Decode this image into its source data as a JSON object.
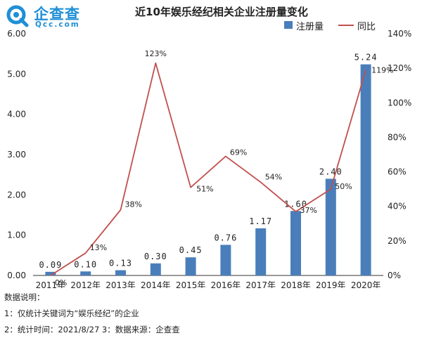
{
  "logo": {
    "brand": "企查查",
    "domain": "Qcc.com"
  },
  "chart_data": {
    "type": "bar+line",
    "title": "近10年娱乐经纪相关企业注册量变化",
    "categories": [
      "2011年",
      "2012年",
      "2013年",
      "2014年",
      "2015年",
      "2016年",
      "2017年",
      "2018年",
      "2019年",
      "2020年"
    ],
    "series": [
      {
        "name": "注册量",
        "type": "bar",
        "axis": "left",
        "color": "#4a7ebb",
        "values": [
          0.09,
          0.1,
          0.13,
          0.3,
          0.45,
          0.76,
          1.17,
          1.6,
          2.4,
          5.24
        ],
        "labels": [
          "0.09",
          "0.10",
          "0.13",
          "0.30",
          "0.45",
          "0.76",
          "1.17",
          "1.60",
          "2.40",
          "5.24"
        ]
      },
      {
        "name": "同比",
        "type": "line",
        "axis": "right",
        "color": "#c0504d",
        "values": [
          0,
          13,
          38,
          123,
          51,
          69,
          54,
          37,
          50,
          119
        ],
        "labels": [
          "0%",
          "13%",
          "38%",
          "123%",
          "51%",
          "69%",
          "54%",
          "37%",
          "50%",
          "119%"
        ]
      }
    ],
    "left_axis": {
      "min": 0,
      "max": 6,
      "ticks": [
        "0.00",
        "1.00",
        "2.00",
        "3.00",
        "4.00",
        "5.00",
        "6.00"
      ]
    },
    "right_axis": {
      "min": 0,
      "max": 140,
      "ticks": [
        "0%",
        "20%",
        "40%",
        "60%",
        "80%",
        "100%",
        "120%",
        "140%"
      ]
    },
    "legend_position": "top-right",
    "grid": false
  },
  "notes": {
    "heading": "数据说明：",
    "line1": "1：仅统计关键词为“娱乐经纪”的企业",
    "line2": "2：统计时间：2021/8/27 3：数据来源：企查查"
  }
}
